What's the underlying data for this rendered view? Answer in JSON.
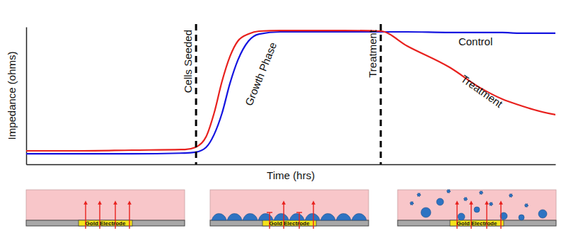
{
  "chart_data": {
    "type": "line",
    "x_label": "Time (hrs)",
    "y_label": "Impedance (ohms)",
    "x": [
      0,
      10,
      20,
      30,
      32,
      34,
      35.5,
      37,
      38.5,
      40,
      42,
      44,
      48,
      55,
      60,
      67,
      72,
      80,
      86,
      90,
      93,
      96,
      100
    ],
    "series": [
      {
        "name": "Treatment",
        "color": "#e8211e",
        "values": [
          9.8,
          9.8,
          10.3,
          10.8,
          12.4,
          20.1,
          37.1,
          60.3,
          78.4,
          89.7,
          94.8,
          96.9,
          97.4,
          97.4,
          97.4,
          96.9,
          86.1,
          70.6,
          55.2,
          47.4,
          43.3,
          39.7,
          36.1
        ]
      },
      {
        "name": "Control",
        "color": "#1515e0",
        "values": [
          7.7,
          7.7,
          7.7,
          8.2,
          8.8,
          12.4,
          21.6,
          37.1,
          58.8,
          75.8,
          89.7,
          94.8,
          96.4,
          96.4,
          96.4,
          96.4,
          96.4,
          95.9,
          95.9,
          95.9,
          95.4,
          95.4,
          95.4
        ]
      }
    ],
    "xlim": [
      0,
      100
    ],
    "ylim": [
      0,
      100
    ],
    "xticks": [],
    "yticks": [],
    "tick_labels": false,
    "grid": false,
    "vlines": [
      {
        "x": 32.1,
        "label": "Cells Seeded"
      },
      {
        "x": 67,
        "label": "Treatment"
      }
    ],
    "annotations": [
      {
        "text": "Growth Phase",
        "x": 44.5,
        "y": 65.5
      },
      {
        "text": "Control",
        "x": 84.9,
        "y": 88.7
      },
      {
        "text": "Treatment",
        "x": 86,
        "y": 52.6
      }
    ]
  },
  "panels": [
    {
      "label": "Gold Electrode"
    },
    {
      "label": "Gold Electrode"
    },
    {
      "label": "Gold Electrode"
    }
  ]
}
